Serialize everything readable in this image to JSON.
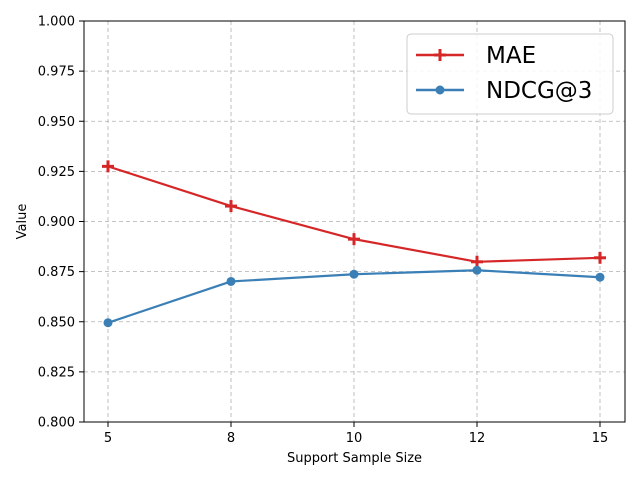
{
  "chart_data": {
    "type": "line",
    "title": "",
    "xlabel": "Support Sample Size",
    "ylabel": "Value",
    "categories": [
      "5",
      "8",
      "10",
      "12",
      "15"
    ],
    "ylim": [
      0.8,
      1.0
    ],
    "yticks": [
      "0.800",
      "0.825",
      "0.850",
      "0.875",
      "0.900",
      "0.925",
      "0.950",
      "0.975",
      "1.000"
    ],
    "grid": true,
    "legend_position": "top-right",
    "series": [
      {
        "name": "MAE",
        "color": "#d62728",
        "marker": "plus",
        "values": [
          0.9275,
          0.9077,
          0.8912,
          0.8799,
          0.8819
        ]
      },
      {
        "name": "NDCG@3",
        "color": "#3a7fb6",
        "marker": "circle",
        "values": [
          0.8495,
          0.8701,
          0.8737,
          0.8757,
          0.8722
        ]
      }
    ]
  }
}
